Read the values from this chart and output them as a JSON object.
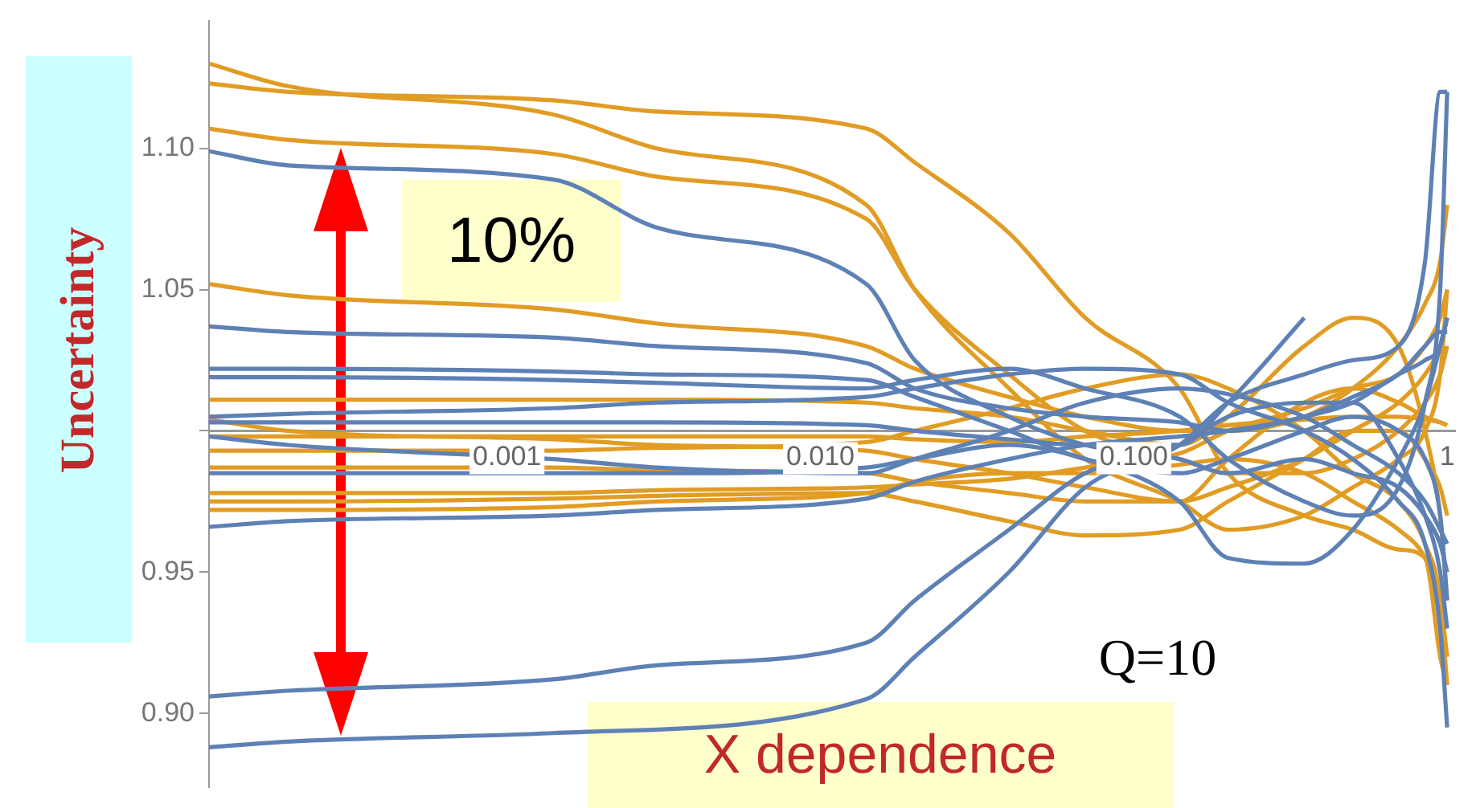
{
  "chart_data": {
    "type": "line",
    "ylabel": "Uncertainty",
    "annotations": [
      "10%",
      "X dependence",
      "Q=10"
    ],
    "log": "x",
    "xlim": [
      0.000112,
      1.06
    ],
    "xticks": [
      {
        "value": 0.001,
        "label": "0.001"
      },
      {
        "value": 0.01,
        "label": "0.010"
      },
      {
        "value": 0.1,
        "label": "0.100"
      },
      {
        "value": 1,
        "label": "1"
      }
    ],
    "ylim": [
      0.874,
      1.145
    ],
    "yticks": [
      {
        "value": 0.9,
        "label": "0.90"
      },
      {
        "value": 0.95,
        "label": "0.95"
      },
      {
        "value": 1.0,
        "label": null
      },
      {
        "value": 1.05,
        "label": "1.05"
      },
      {
        "value": 1.1,
        "label": "1.10"
      }
    ],
    "x": [
      0.000112,
      0.0002,
      0.0014,
      0.003,
      0.014,
      0.02,
      0.04,
      0.07,
      0.14,
      0.2,
      0.35,
      0.5,
      0.7,
      0.85,
      0.95,
      1
    ],
    "marker": "none",
    "line_style": "solid",
    "legend": false,
    "series": [
      {
        "color": "#5e81b5",
        "values": [
          1.099,
          1.094,
          1.089,
          1.072,
          1.052,
          1.025,
          1.005,
          0.995,
          0.99,
          0.985,
          0.99,
          0.985,
          0.98,
          0.97,
          0.96,
          0.95
        ]
      },
      {
        "color": "#5e81b5",
        "values": [
          1.037,
          1.035,
          1.033,
          1.03,
          1.024,
          1.015,
          1.008,
          1.005,
          1.003,
          1.0,
          1.005,
          1.01,
          1.02,
          1.025,
          1.03,
          1.04
        ]
      },
      {
        "color": "#5e81b5",
        "values": [
          0.906,
          0.908,
          0.912,
          0.917,
          0.925,
          0.94,
          0.965,
          0.985,
          0.995,
          1.005,
          1.01,
          1.01,
          0.99,
          0.97,
          0.95,
          0.93
        ]
      },
      {
        "color": "#5e81b5",
        "values": [
          0.888,
          0.89,
          0.893,
          null,
          0.905,
          0.92,
          0.95,
          0.98,
          0.995,
          1.01,
          1.02,
          1.025,
          1.03,
          1.06,
          1.12,
          1.12
        ]
      },
      {
        "color": "#5e81b5",
        "values": [
          1.022,
          1.022,
          1.021,
          1.02,
          1.018,
          1.012,
          1.0,
          0.99,
          0.985,
          0.99,
          1.0,
          1.005,
          1.0,
          0.99,
          0.97,
          0.94
        ]
      },
      {
        "color": "#5e81b5",
        "values": [
          1.019,
          1.019,
          1.018,
          1.017,
          1.015,
          1.018,
          1.022,
          1.015,
          1.005,
          0.99,
          0.975,
          0.97,
          0.98,
          1.01,
          1.05,
          1.12
        ]
      },
      {
        "color": "#5e81b5",
        "values": [
          1.005,
          1.006,
          1.008,
          1.01,
          1.012,
          1.015,
          1.02,
          1.022,
          1.02,
          1.01,
          1.0,
          0.99,
          0.975,
          0.96,
          0.93,
          0.895
        ]
      },
      {
        "color": "#5e81b5",
        "values": [
          0.998,
          0.995,
          0.99,
          0.987,
          0.985,
          0.99,
          1.0,
          1.01,
          1.015,
          1.013,
          1.005,
          0.995,
          0.985,
          0.975,
          0.965,
          0.96
        ]
      },
      {
        "color": "#5e81b5",
        "values": [
          0.966,
          0.968,
          0.97,
          0.972,
          0.976,
          0.982,
          0.99,
          0.995,
          0.998,
          1.0,
          1.005,
          1.012,
          1.02,
          1.03,
          1.035,
          1.035
        ]
      },
      {
        "color": "#5e81b5",
        "values": [
          1.003,
          1.003,
          1.003,
          1.003,
          1.002,
          1.0,
          0.997,
          0.995,
          0.995,
          1.01,
          1.04,
          null,
          null,
          null,
          null,
          null
        ]
      },
      {
        "color": "#5e81b5",
        "values": [
          0.985,
          0.985,
          0.985,
          0.985,
          0.987,
          0.99,
          0.995,
          0.99,
          0.975,
          0.955,
          0.953,
          0.965,
          0.99,
          1.01,
          1.03,
          1.04
        ]
      },
      {
        "color": "#e19c24",
        "values": [
          1.13,
          1.122,
          1.112,
          1.1,
          1.08,
          1.05,
          1.015,
          0.99,
          0.975,
          0.965,
          0.97,
          0.98,
          0.99,
          1.0,
          1.02,
          1.05
        ]
      },
      {
        "color": "#e19c24",
        "values": [
          1.123,
          1.12,
          1.117,
          1.113,
          1.107,
          1.095,
          1.07,
          1.04,
          1.015,
          0.985,
          0.97,
          0.965,
          0.958,
          0.955,
          0.92,
          0.91
        ]
      },
      {
        "color": "#e19c24",
        "values": [
          1.107,
          1.103,
          1.098,
          1.09,
          1.075,
          1.05,
          1.02,
          1.0,
          0.99,
          0.985,
          0.985,
          0.99,
          1.0,
          1.01,
          1.02,
          1.03
        ]
      },
      {
        "color": "#e19c24",
        "values": [
          1.052,
          1.048,
          1.043,
          1.038,
          1.03,
          1.022,
          1.012,
          1.005,
          1.0,
          1.0,
          1.005,
          1.015,
          1.03,
          1.045,
          1.06,
          1.08
        ]
      },
      {
        "color": "#e19c24",
        "values": [
          1.011,
          1.011,
          1.011,
          1.011,
          1.01,
          1.008,
          1.005,
          1.0,
          0.995,
          1.005,
          1.03,
          1.04,
          1.03,
          1.0,
          0.97,
          0.94
        ]
      },
      {
        "color": "#e19c24",
        "values": [
          1.004,
          1.0,
          0.997,
          0.995,
          0.993,
          0.99,
          0.985,
          0.98,
          0.975,
          0.98,
          0.99,
          1.0,
          1.01,
          1.02,
          1.03,
          1.04
        ]
      },
      {
        "color": "#e19c24",
        "values": [
          0.993,
          0.993,
          0.993,
          0.994,
          0.996,
          1.0,
          1.008,
          1.015,
          1.02,
          1.015,
          1.0,
          0.985,
          0.975,
          0.96,
          0.94,
          0.91
        ]
      },
      {
        "color": "#e19c24",
        "values": [
          0.987,
          0.987,
          0.987,
          0.986,
          0.985,
          0.982,
          0.978,
          0.975,
          0.975,
          0.99,
          1.01,
          1.015,
          1.01,
          1.005,
          1.003,
          1.002
        ]
      },
      {
        "color": "#e19c24",
        "values": [
          0.978,
          0.978,
          0.978,
          0.979,
          0.98,
          0.981,
          0.983,
          0.987,
          0.992,
          1.0,
          1.008,
          1.015,
          1.02,
          1.03,
          1.04,
          1.05
        ]
      },
      {
        "color": "#e19c24",
        "values": [
          0.975,
          0.975,
          0.976,
          0.977,
          0.978,
          0.975,
          0.968,
          0.963,
          0.965,
          0.975,
          0.99,
          1.0,
          1.0,
          0.99,
          0.98,
          0.97
        ]
      },
      {
        "color": "#e19c24",
        "values": [
          0.972,
          0.972,
          0.973,
          0.975,
          0.978,
          0.982,
          0.985,
          0.985,
          0.988,
          0.99,
          0.985,
          0.975,
          0.965,
          0.955,
          0.94,
          0.92
        ]
      },
      {
        "color": "#e19c24",
        "values": [
          0.998,
          0.998,
          0.998,
          0.998,
          0.998,
          0.997,
          0.996,
          0.998,
          1.0,
          1.002,
          1.004,
          1.005,
          1.005,
          1.004,
          1.003,
          1.002
        ]
      }
    ]
  }
}
